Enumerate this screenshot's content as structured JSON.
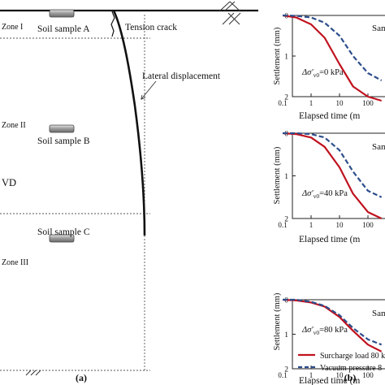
{
  "panel_a": {
    "label": "(a)",
    "zones": {
      "zone1": "Zone I",
      "zone2": "Zone II",
      "zone3": "Zone III"
    },
    "samples": {
      "a": "Soil sample A",
      "b": "Soil sample B",
      "c": "Soil sample C"
    },
    "annotations": {
      "tension_crack": "Tension crack",
      "lateral_displacement": "Lateral displacement",
      "vd": "VD"
    }
  },
  "panel_b": {
    "label": "(b)",
    "y_label": "Settlement (mm)",
    "x_label": "Elapsed time (m",
    "sample_label": "Sam",
    "legend": {
      "surcharge": "Surcharge load 80 k",
      "vacuum": "Vacuum pressure 8"
    },
    "stress": [
      {
        "prefix": "Δσ′",
        "sub": "v0",
        "suffix": "=0 kPa"
      },
      {
        "prefix": "Δσ′",
        "sub": "v0",
        "suffix": "=40 kPa"
      },
      {
        "prefix": "Δσ′",
        "sub": "v0",
        "suffix": "=80 kPa"
      }
    ],
    "colors": {
      "surcharge": "#c0121f",
      "vacuum": "#2e4e8c"
    }
  },
  "chart_data": [
    {
      "type": "line",
      "x_scale": "log",
      "x_ticks": [
        "0.1",
        "1",
        "10",
        "100"
      ],
      "y_ticks": [
        "0",
        "1",
        "2"
      ],
      "y_inverted": true,
      "series": [
        {
          "name": "Surcharge load 80 k",
          "x": [
            0.1,
            0.3,
            1,
            3,
            10,
            30,
            100,
            300
          ],
          "y": [
            0.0,
            0.05,
            0.22,
            0.55,
            1.2,
            1.75,
            2.0,
            2.1
          ]
        },
        {
          "name": "Vacuum pressure 8",
          "x": [
            0.1,
            0.3,
            1,
            3,
            10,
            30,
            100,
            300
          ],
          "y": [
            0.0,
            0.01,
            0.05,
            0.18,
            0.5,
            1.0,
            1.42,
            1.6
          ]
        }
      ]
    },
    {
      "type": "line",
      "x_scale": "log",
      "x_ticks": [
        "0.1",
        "1",
        "10",
        "100"
      ],
      "y_ticks": [
        "0",
        "1",
        "2"
      ],
      "y_inverted": true,
      "series": [
        {
          "name": "Surcharge load 80 k",
          "x": [
            0.1,
            0.3,
            1,
            3,
            10,
            30,
            100,
            300
          ],
          "y": [
            0.0,
            0.02,
            0.1,
            0.32,
            0.8,
            1.42,
            1.85,
            2.0
          ]
        },
        {
          "name": "Vacuum pressure 8",
          "x": [
            0.1,
            0.3,
            1,
            3,
            10,
            30,
            100,
            300
          ],
          "y": [
            0.0,
            0.0,
            0.02,
            0.1,
            0.4,
            0.9,
            1.35,
            1.5
          ]
        }
      ]
    },
    {
      "type": "line",
      "x_scale": "log",
      "x_ticks": [
        "0.1",
        "1",
        "10",
        "100"
      ],
      "y_ticks": [
        "0",
        "1",
        "2"
      ],
      "y_inverted": true,
      "series": [
        {
          "name": "Surcharge load 80 k",
          "x": [
            0.1,
            0.3,
            1,
            3,
            10,
            30,
            100,
            300
          ],
          "y": [
            0.0,
            0.02,
            0.08,
            0.2,
            0.5,
            0.9,
            1.3,
            1.5
          ]
        },
        {
          "name": "Vacuum pressure 8",
          "x": [
            0.1,
            0.3,
            1,
            3,
            10,
            30,
            100,
            300
          ],
          "y": [
            0.0,
            0.0,
            0.06,
            0.18,
            0.45,
            0.82,
            1.15,
            1.3
          ]
        }
      ]
    }
  ]
}
